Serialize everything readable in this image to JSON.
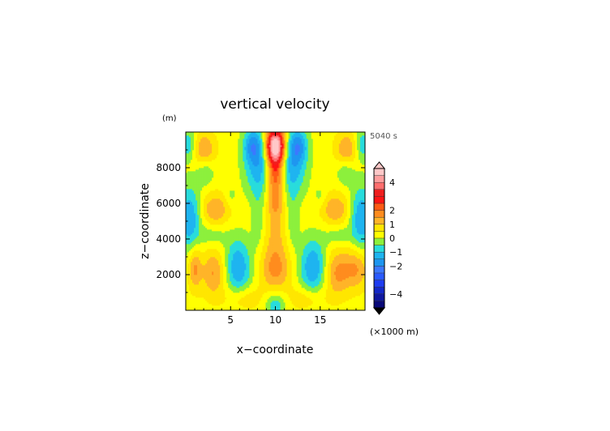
{
  "chart_data": {
    "type": "heatmap",
    "title": "vertical velocity",
    "time_label": "5040 s",
    "xlabel": "x−coordinate",
    "ylabel": "z−coordinate",
    "x_unit": "(×1000 m)",
    "y_unit": "(m)",
    "xlim": [
      0,
      20
    ],
    "ylim": [
      0,
      10000
    ],
    "x_ticks": [
      5,
      10,
      15
    ],
    "x_tick_labels": [
      "5",
      "10",
      "15"
    ],
    "y_ticks": [
      2000,
      4000,
      6000,
      8000
    ],
    "y_tick_labels": [
      "2000",
      "4000",
      "6000",
      "8000"
    ],
    "colorbar": {
      "levels": [
        -5,
        -4.5,
        -4,
        -3.5,
        -3,
        -2.5,
        -2,
        -1.5,
        -1,
        -0.5,
        0,
        0.5,
        1,
        1.5,
        2,
        2.5,
        3,
        3.5,
        4,
        4.5,
        5
      ],
      "colors": [
        "#0a0a78",
        "#1018a0",
        "#1428c8",
        "#1e3cf0",
        "#2a5aff",
        "#3c78ff",
        "#1e96f0",
        "#1eb4f0",
        "#28dcdc",
        "#8cf03c",
        "#ffff00",
        "#ffe600",
        "#ffb428",
        "#ff8c1e",
        "#ff5a14",
        "#ff1414",
        "#f01e1e",
        "#ff6e6e",
        "#ff9e9e",
        "#ffc8c8"
      ],
      "under_color": "#000000",
      "over_color": "#ffc8c8",
      "tick_values": [
        4,
        2,
        1,
        0,
        -1,
        -2,
        -4
      ],
      "tick_labels": [
        "4",
        "2",
        "1",
        "0",
        "−1",
        "−2",
        "−4"
      ]
    },
    "features": [
      {
        "x": 10.0,
        "z": 9300,
        "value": 4.6,
        "sx": 0.75,
        "sz": 650
      },
      {
        "x": 10.0,
        "z": 8100,
        "value": 2.6,
        "sx": 0.75,
        "sz": 900
      },
      {
        "x": 10.0,
        "z": 6300,
        "value": 1.6,
        "sx": 0.7,
        "sz": 900
      },
      {
        "x": 10.0,
        "z": 2400,
        "value": 1.4,
        "sx": 1.2,
        "sz": 900
      },
      {
        "x": 10.0,
        "z": 4200,
        "value": 0.6,
        "sx": 0.9,
        "sz": 800
      },
      {
        "x": 8.2,
        "z": 8000,
        "value": -1.6,
        "sx": 1.2,
        "sz": 1200
      },
      {
        "x": 11.8,
        "z": 8000,
        "value": -1.6,
        "sx": 1.2,
        "sz": 1200
      },
      {
        "x": 7.5,
        "z": 9300,
        "value": -1.6,
        "sx": 0.8,
        "sz": 700
      },
      {
        "x": 12.5,
        "z": 9300,
        "value": -1.6,
        "sx": 0.8,
        "sz": 700
      },
      {
        "x": 5.8,
        "z": 2400,
        "value": -1.8,
        "sx": 1.1,
        "sz": 1200
      },
      {
        "x": 14.2,
        "z": 2400,
        "value": -1.8,
        "sx": 1.1,
        "sz": 1200
      },
      {
        "x": 0.4,
        "z": 5200,
        "value": -1.8,
        "sx": 0.9,
        "sz": 1300
      },
      {
        "x": 19.6,
        "z": 5200,
        "value": -1.8,
        "sx": 0.9,
        "sz": 1300
      },
      {
        "x": 0.3,
        "z": 9300,
        "value": -1.3,
        "sx": 0.6,
        "sz": 600
      },
      {
        "x": 19.7,
        "z": 9300,
        "value": -1.3,
        "sx": 0.6,
        "sz": 600
      },
      {
        "x": 10.0,
        "z": 300,
        "value": -1.2,
        "sx": 0.8,
        "sz": 500
      },
      {
        "x": 8.1,
        "z": 4900,
        "value": -0.6,
        "sx": 0.5,
        "sz": 1200
      },
      {
        "x": 11.9,
        "z": 4900,
        "value": -0.6,
        "sx": 0.5,
        "sz": 1200
      },
      {
        "x": 3.2,
        "z": 2100,
        "value": 1.3,
        "sx": 1.0,
        "sz": 900
      },
      {
        "x": 16.8,
        "z": 2100,
        "value": 1.3,
        "sx": 1.0,
        "sz": 900
      },
      {
        "x": 3.3,
        "z": 5700,
        "value": 1.2,
        "sx": 1.1,
        "sz": 600
      },
      {
        "x": 16.7,
        "z": 5700,
        "value": 1.2,
        "sx": 1.1,
        "sz": 600
      },
      {
        "x": 2.0,
        "z": 9100,
        "value": 1.2,
        "sx": 0.9,
        "sz": 600
      },
      {
        "x": 18.0,
        "z": 9100,
        "value": 1.2,
        "sx": 0.9,
        "sz": 600
      },
      {
        "x": 1.0,
        "z": 2400,
        "value": 1.3,
        "sx": 0.5,
        "sz": 800
      },
      {
        "x": 19.0,
        "z": 2400,
        "value": 1.3,
        "sx": 1.0,
        "sz": 800
      },
      {
        "x": 3.0,
        "z": 4200,
        "value": -0.6,
        "sx": 1.0,
        "sz": 400
      },
      {
        "x": 17.0,
        "z": 4200,
        "value": -0.6,
        "sx": 1.0,
        "sz": 400
      },
      {
        "x": 2.2,
        "z": 7700,
        "value": -0.7,
        "sx": 0.7,
        "sz": 500
      },
      {
        "x": 17.8,
        "z": 7700,
        "value": -0.7,
        "sx": 0.7,
        "sz": 500
      },
      {
        "x": 5.0,
        "z": 6400,
        "value": -0.5,
        "sx": 0.5,
        "sz": 400
      },
      {
        "x": 15.0,
        "z": 6400,
        "value": -0.5,
        "sx": 0.5,
        "sz": 400
      },
      {
        "x": 6.3,
        "z": 700,
        "value": 0.8,
        "sx": 1.4,
        "sz": 500
      },
      {
        "x": 13.7,
        "z": 700,
        "value": 0.8,
        "sx": 1.4,
        "sz": 500
      }
    ]
  }
}
